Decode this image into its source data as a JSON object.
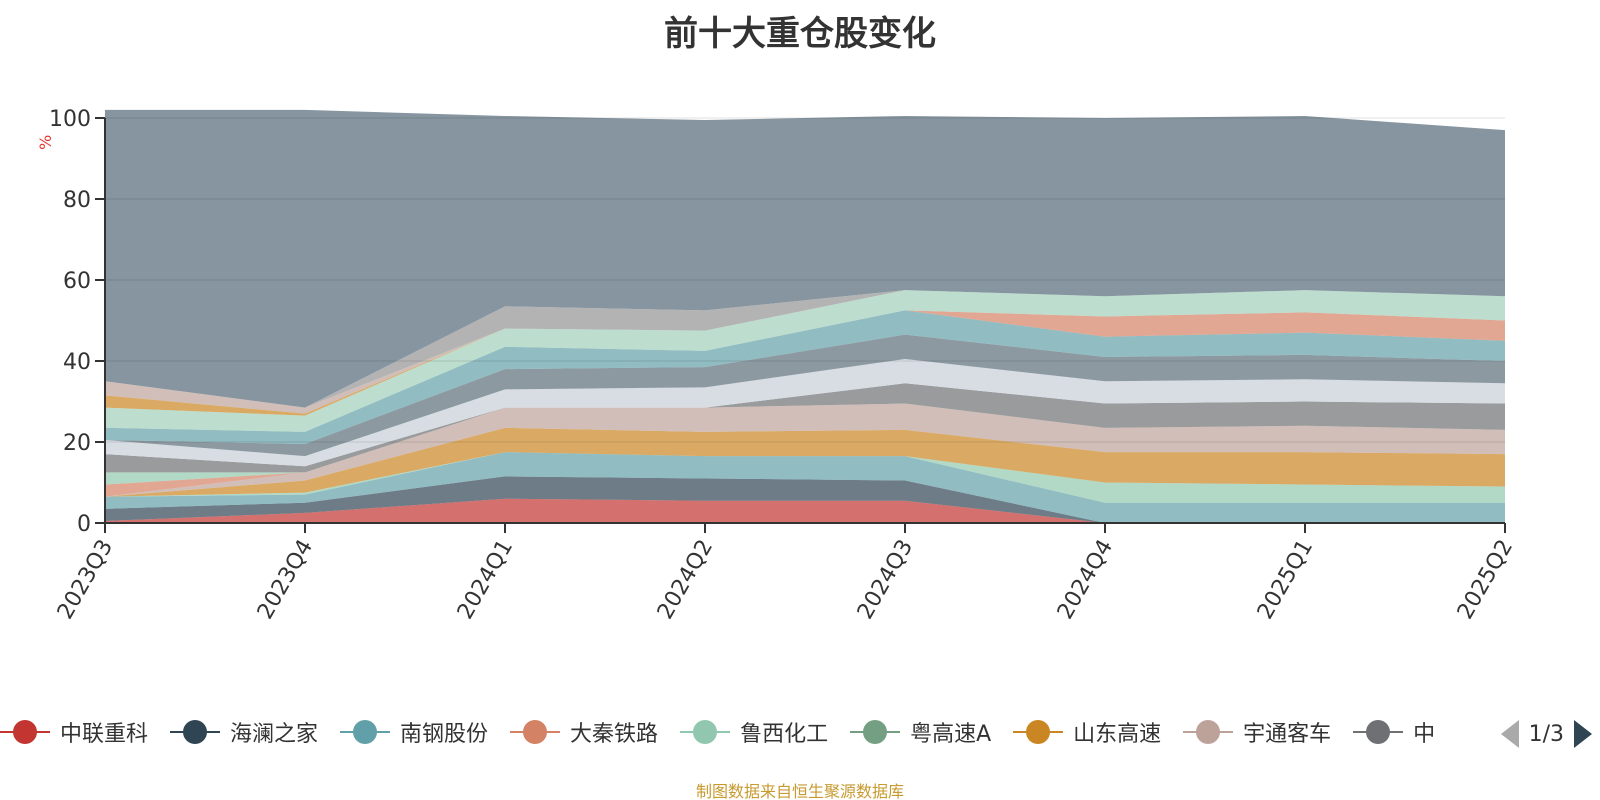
{
  "page": {
    "title": "前十大重仓股变化",
    "unit": "%",
    "source": "制图数据来自恒生聚源数据库",
    "pager": "1/3"
  },
  "legend": [
    {
      "name": "中联重科",
      "color": "#c23531"
    },
    {
      "name": "海澜之家",
      "color": "#2f4554"
    },
    {
      "name": "南钢股份",
      "color": "#61a0a8"
    },
    {
      "name": "大秦铁路",
      "color": "#d48265"
    },
    {
      "name": "鲁西化工",
      "color": "#91c7ae"
    },
    {
      "name": "粤高速A",
      "color": "#749f83"
    },
    {
      "name": "山东高速",
      "color": "#ca8622"
    },
    {
      "name": "宇通客车",
      "color": "#bda29a"
    },
    {
      "name": "中",
      "color": "#6e7074"
    }
  ],
  "chart_data": {
    "type": "area",
    "x": [
      "2023Q3",
      "2023Q4",
      "2024Q1",
      "2024Q2",
      "2024Q3",
      "2024Q4",
      "2025Q1",
      "2025Q2"
    ],
    "ylim": [
      0,
      100
    ],
    "yticks": [
      0,
      20,
      40,
      60,
      80,
      100
    ],
    "stacked": true,
    "grid": true,
    "layers": [
      {
        "color": "#c23531",
        "opacity": 0.7,
        "values": [
          0.5,
          2.5,
          6.0,
          5.5,
          5.5,
          0,
          0,
          0
        ]
      },
      {
        "color": "#2f4554",
        "opacity": 0.7,
        "values": [
          3.0,
          2.5,
          5.5,
          5.5,
          5.0,
          0,
          0,
          0
        ]
      },
      {
        "color": "#61a0a8",
        "opacity": 0.7,
        "values": [
          3.0,
          2.0,
          6.0,
          5.5,
          6.0,
          5.0,
          5.0,
          5.0
        ]
      },
      {
        "color": "#91c7ae",
        "opacity": 0.7,
        "values": [
          0,
          0.5,
          0,
          0,
          0,
          5.0,
          4.5,
          4.0
        ]
      },
      {
        "color": "#ca8622",
        "opacity": 0.7,
        "values": [
          0,
          3.0,
          6.0,
          6.0,
          6.5,
          7.5,
          8.0,
          8.0
        ]
      },
      {
        "color": "#bda29a",
        "opacity": 0.7,
        "values": [
          0,
          2.0,
          5.0,
          6.0,
          6.5,
          6.0,
          6.5,
          6.0
        ]
      },
      {
        "color": "#d48265",
        "opacity": 0.7,
        "values": [
          3.0,
          0,
          0,
          0,
          0,
          0,
          0,
          0
        ]
      },
      {
        "color": "#91c7ae",
        "opacity": 0.7,
        "values": [
          3.0,
          0,
          0,
          0,
          0,
          0,
          0,
          0
        ]
      },
      {
        "color": "#6e7074",
        "opacity": 0.7,
        "values": [
          4.5,
          1.5,
          0,
          0,
          5.0,
          6.0,
          6.0,
          6.5
        ]
      },
      {
        "color": "#d3d9e0",
        "opacity": 0.9,
        "values": [
          3.5,
          2.5,
          4.5,
          5.0,
          6.0,
          5.5,
          5.5,
          5.0
        ]
      },
      {
        "color": "#2f4554",
        "opacity": 0.55,
        "values": [
          0,
          3.0,
          5.0,
          5.0,
          6.0,
          6.0,
          6.0,
          5.5
        ]
      },
      {
        "color": "#61a0a8",
        "opacity": 0.7,
        "values": [
          3.0,
          3.0,
          5.5,
          4.0,
          6.0,
          5.0,
          5.5,
          5.0
        ]
      },
      {
        "color": "#d48265",
        "opacity": 0.7,
        "values": [
          0,
          0,
          0,
          0,
          0,
          5.0,
          5.0,
          5.0
        ]
      },
      {
        "color": "#91c7ae",
        "opacity": 0.6,
        "values": [
          5.0,
          4.0,
          4.5,
          5.0,
          5.0,
          5.0,
          5.5,
          6.0
        ]
      },
      {
        "color": "#ca8622",
        "opacity": 0.7,
        "values": [
          3.0,
          0.5,
          0,
          0,
          0,
          0,
          0,
          0
        ]
      },
      {
        "color": "#bda29a",
        "opacity": 0.7,
        "values": [
          3.5,
          1.5,
          0,
          0,
          0,
          0,
          0,
          0
        ]
      },
      {
        "color": "#a0a0a0",
        "opacity": 0.8,
        "values": [
          0,
          0,
          5.5,
          5.0,
          0,
          0,
          0,
          0
        ]
      },
      {
        "color": "#8695a0",
        "opacity": 1.0,
        "values": [
          67.0,
          73.5,
          47.0,
          47.0,
          43.0,
          44.0,
          43.0,
          41.0
        ]
      }
    ]
  }
}
